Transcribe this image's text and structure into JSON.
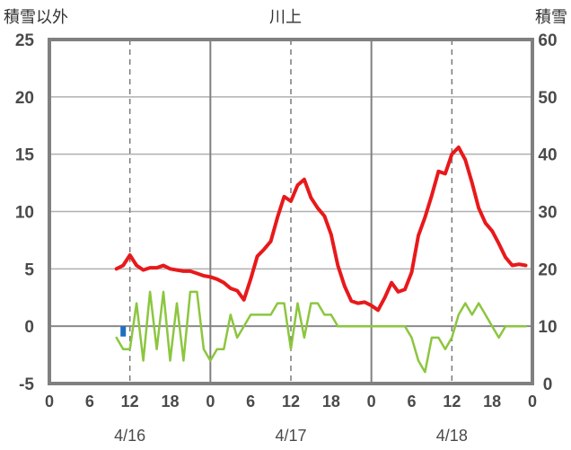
{
  "chart_data": {
    "type": "line",
    "title": "川上",
    "left_axis_label": "積雪以外",
    "right_axis_label": "積雪",
    "y_left_range": [
      -5,
      25
    ],
    "y_left_ticks": [
      25,
      20,
      15,
      10,
      5,
      0,
      -5
    ],
    "y_right_range": [
      0,
      60
    ],
    "y_right_ticks": [
      60,
      50,
      40,
      30,
      20,
      10,
      0
    ],
    "x_range_hours": [
      0,
      72
    ],
    "x_tick_labels": [
      "0",
      "6",
      "12",
      "18",
      "0",
      "6",
      "12",
      "18",
      "0",
      "6",
      "12",
      "18",
      "0"
    ],
    "date_labels": [
      {
        "label": "4/16",
        "hour": 12
      },
      {
        "label": "4/17",
        "hour": 36
      },
      {
        "label": "4/18",
        "hour": 60
      }
    ],
    "grid": {
      "day_boundaries_solid": true,
      "noon_dashed": true,
      "horizontal_lines": true
    },
    "colors": {
      "temperature": "#e8191b",
      "green_series": "#8cc63f",
      "snow_depth": "#7030a0",
      "precip_bar": "#1f6fbf",
      "frame": "#808080"
    },
    "series": [
      {
        "axis": "left",
        "x": [
          10,
          11,
          12,
          13,
          14,
          15,
          16,
          17,
          18,
          19,
          20,
          21,
          22,
          23,
          24,
          25,
          26,
          27,
          28,
          29,
          30,
          31,
          32,
          33,
          34,
          35,
          36,
          37,
          38,
          39,
          40,
          41,
          42,
          43,
          44,
          45,
          46,
          47,
          48,
          49,
          50,
          51,
          52,
          53,
          54,
          55,
          56,
          57,
          58,
          59,
          60,
          61,
          62,
          63,
          64,
          65,
          66,
          67,
          68,
          69,
          70,
          71
        ],
        "y": [
          5.0,
          5.3,
          6.2,
          5.3,
          4.9,
          5.1,
          5.1,
          5.3,
          5.0,
          4.9,
          4.8,
          4.8,
          4.6,
          4.4,
          4.3,
          4.1,
          3.8,
          3.3,
          3.1,
          2.3,
          4.1,
          6.1,
          6.7,
          7.4,
          9.5,
          11.3,
          10.9,
          12.3,
          12.8,
          11.2,
          10.3,
          9.6,
          8.0,
          5.3,
          3.5,
          2.2,
          2.0,
          2.1,
          1.8,
          1.4,
          2.5,
          3.8,
          3.0,
          3.2,
          4.7,
          7.9,
          9.5,
          11.4,
          13.5,
          13.3,
          15.0,
          15.6,
          14.5,
          12.5,
          10.3,
          9.0,
          8.3,
          7.2,
          6.0,
          5.3,
          5.4,
          5.3
        ]
      },
      {
        "axis": "left",
        "x": [
          10,
          11,
          12,
          13,
          14,
          15,
          16,
          17,
          18,
          19,
          20,
          21,
          22,
          23,
          24,
          25,
          26,
          27,
          28,
          29,
          30,
          31,
          32,
          33,
          34,
          35,
          36,
          37,
          38,
          39,
          40,
          41,
          42,
          43,
          44,
          45,
          46,
          47,
          48,
          49,
          50,
          51,
          52,
          53,
          54,
          55,
          56,
          57,
          58,
          59,
          60,
          61,
          62,
          63,
          64,
          65,
          66,
          67,
          68,
          69,
          70,
          71
        ],
        "y": [
          -1,
          -2,
          -2,
          2,
          -3,
          3,
          -2,
          3,
          -3,
          2,
          -3,
          3,
          3,
          -2,
          -3,
          -2,
          -2,
          1,
          -1,
          0,
          1,
          1,
          1,
          1,
          2,
          2,
          -2,
          2,
          -1,
          2,
          2,
          1,
          1,
          0,
          0,
          0,
          0,
          0,
          0,
          0,
          0,
          0,
          0,
          0,
          -1,
          -3,
          -4,
          -1,
          -1,
          -2,
          -1,
          1,
          2,
          1,
          2,
          1,
          0,
          -1,
          0,
          0,
          0,
          0
        ]
      },
      {
        "axis": "right",
        "x": [
          0,
          72
        ],
        "y": [
          0,
          0
        ]
      }
    ],
    "precip_bars": [
      {
        "x": 11,
        "value": -0.9
      }
    ]
  }
}
